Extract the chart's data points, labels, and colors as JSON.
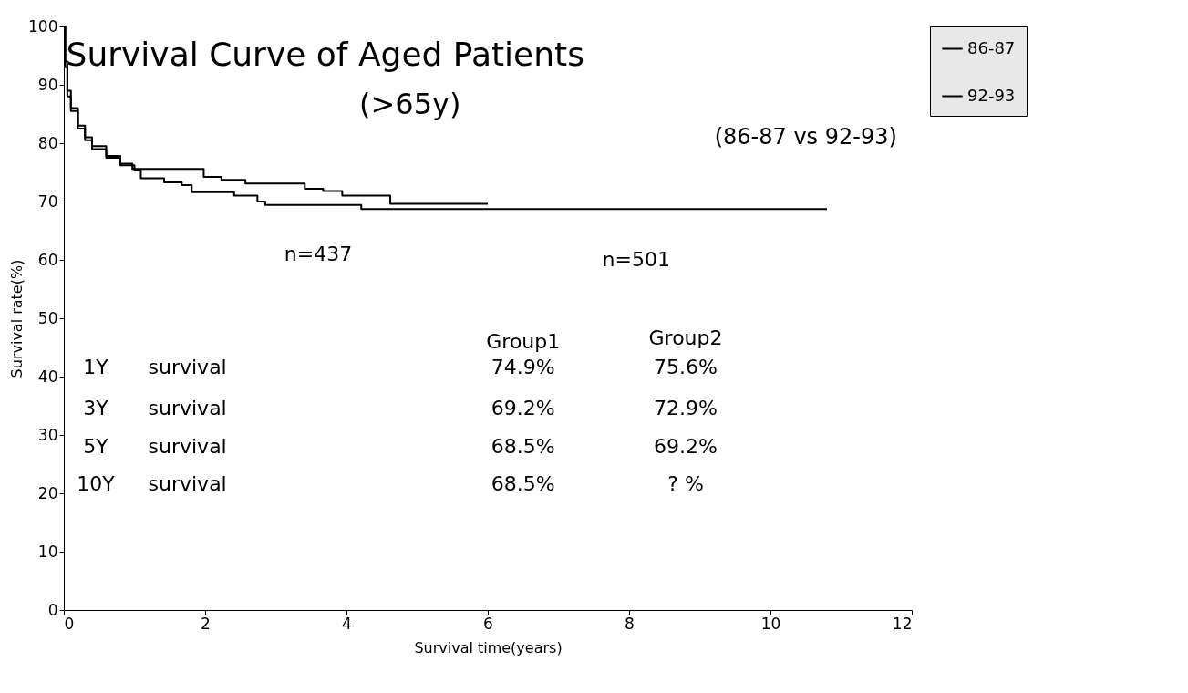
{
  "chart_data": {
    "type": "step",
    "title": "Survival Curve of Aged Patients",
    "subtitle": "(>65y)",
    "xlabel": "Survival time(years)",
    "ylabel": "Survival rate(%)",
    "xlim": [
      0,
      12
    ],
    "xticks": [
      0,
      2,
      4,
      6,
      8,
      10,
      12
    ],
    "ylim": [
      0,
      100
    ],
    "yticks": [
      0,
      10,
      20,
      30,
      40,
      50,
      60,
      70,
      80,
      90,
      100
    ],
    "grid": false,
    "legend": "right",
    "line_style": "solid",
    "marker": "none",
    "series": [
      {
        "name": "86-87",
        "color": "#000000",
        "x": [
          0,
          0.02,
          0.05,
          0.1,
          0.2,
          0.3,
          0.4,
          0.6,
          0.8,
          1.0,
          1.09,
          1.42,
          1.67,
          1.81,
          2.41,
          2.74,
          2.85,
          4.21,
          10.8
        ],
        "values": [
          100,
          94,
          89,
          86,
          83,
          81,
          79.5,
          77.5,
          76.2,
          75.4,
          74.0,
          73.3,
          72.8,
          71.6,
          71.0,
          70.0,
          69.4,
          68.7,
          68.7
        ]
      },
      {
        "name": "92-93",
        "color": "#000000",
        "x": [
          0,
          0.02,
          0.05,
          0.1,
          0.2,
          0.3,
          0.4,
          0.6,
          0.8,
          0.97,
          1.98,
          2.23,
          2.57,
          3.41,
          3.67,
          3.94,
          4.62,
          6.0
        ],
        "values": [
          100,
          93,
          88,
          85.5,
          82.5,
          80.5,
          79,
          77.8,
          76.5,
          75.6,
          74.2,
          73.7,
          73.1,
          72.2,
          71.8,
          71.0,
          69.6,
          69.6
        ]
      }
    ],
    "annotations": [
      "(86-87 vs 92-93)",
      "n=437",
      "n=501",
      "Group1",
      "Group2",
      "1Y",
      "survival",
      "74.9%",
      "75.6%",
      "3Y",
      "survival",
      "69.2%",
      "72.9%",
      "5Y",
      "survival",
      "68.5%",
      "69.2%",
      "10Y",
      "survival",
      "68.5%",
      "? %"
    ]
  }
}
